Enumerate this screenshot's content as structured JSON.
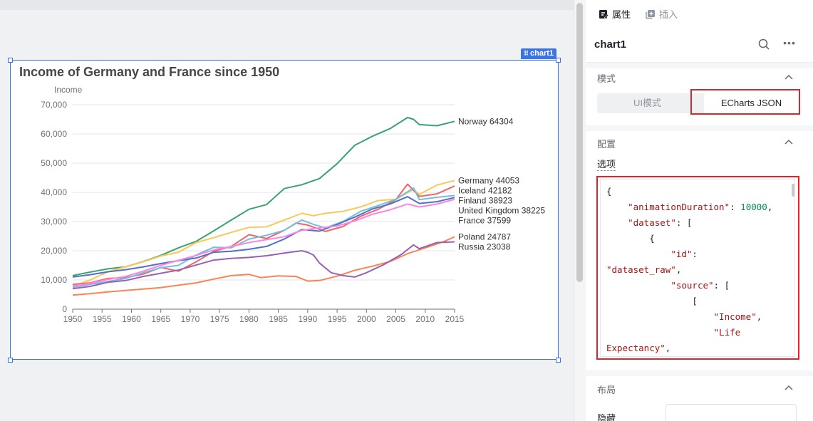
{
  "canvas": {
    "component_tag": "chart1"
  },
  "chart_data": {
    "type": "line",
    "title": "Income of Germany and France since 1950",
    "ylabel": "Income",
    "xlabel": "",
    "xlim": [
      1950,
      2015
    ],
    "ylim": [
      0,
      70000
    ],
    "x_ticks": [
      "1950",
      "1955",
      "1960",
      "1965",
      "1970",
      "1975",
      "1980",
      "1985",
      "1990",
      "1995",
      "2000",
      "2005",
      "2010",
      "2015"
    ],
    "y_ticks": [
      "0",
      "10,000",
      "20,000",
      "30,000",
      "40,000",
      "50,000",
      "60,000",
      "70,000"
    ],
    "grid": "horizontal",
    "series": [
      {
        "name": "Norway",
        "end_label": "Norway 64304",
        "color": "#3ba272",
        "points": [
          [
            1950,
            11500
          ],
          [
            1953,
            12700
          ],
          [
            1956,
            13800
          ],
          [
            1959,
            14500
          ],
          [
            1962,
            16300
          ],
          [
            1965,
            18400
          ],
          [
            1968,
            21000
          ],
          [
            1971,
            23200
          ],
          [
            1974,
            26800
          ],
          [
            1977,
            30500
          ],
          [
            1980,
            34200
          ],
          [
            1983,
            35800
          ],
          [
            1986,
            41300
          ],
          [
            1989,
            42600
          ],
          [
            1992,
            44700
          ],
          [
            1995,
            49800
          ],
          [
            1998,
            56100
          ],
          [
            2001,
            59200
          ],
          [
            2004,
            61800
          ],
          [
            2007,
            65600
          ],
          [
            2008,
            65000
          ],
          [
            2009,
            63200
          ],
          [
            2012,
            62800
          ],
          [
            2015,
            64304
          ]
        ]
      },
      {
        "name": "Germany",
        "end_label": "Germany 44053",
        "color": "#fac858",
        "points": [
          [
            1950,
            7800
          ],
          [
            1953,
            10000
          ],
          [
            1956,
            12800
          ],
          [
            1959,
            14500
          ],
          [
            1962,
            16200
          ],
          [
            1965,
            18200
          ],
          [
            1968,
            19500
          ],
          [
            1971,
            22800
          ],
          [
            1974,
            24500
          ],
          [
            1977,
            26300
          ],
          [
            1980,
            28000
          ],
          [
            1983,
            28200
          ],
          [
            1986,
            30500
          ],
          [
            1989,
            32800
          ],
          [
            1991,
            32000
          ],
          [
            1993,
            32800
          ],
          [
            1996,
            33500
          ],
          [
            1999,
            35000
          ],
          [
            2002,
            37200
          ],
          [
            2005,
            37600
          ],
          [
            2008,
            41000
          ],
          [
            2009,
            39300
          ],
          [
            2012,
            42500
          ],
          [
            2015,
            44053
          ]
        ]
      },
      {
        "name": "Iceland",
        "end_label": "Iceland 42182",
        "color": "#ee6666",
        "points": [
          [
            1950,
            8500
          ],
          [
            1953,
            9000
          ],
          [
            1956,
            10500
          ],
          [
            1959,
            10800
          ],
          [
            1962,
            12000
          ],
          [
            1965,
            14300
          ],
          [
            1968,
            13000
          ],
          [
            1971,
            16200
          ],
          [
            1974,
            19800
          ],
          [
            1977,
            21500
          ],
          [
            1980,
            25500
          ],
          [
            1983,
            24200
          ],
          [
            1986,
            27000
          ],
          [
            1988,
            29500
          ],
          [
            1990,
            28800
          ],
          [
            1993,
            26600
          ],
          [
            1996,
            28300
          ],
          [
            1999,
            31800
          ],
          [
            2002,
            34200
          ],
          [
            2005,
            37500
          ],
          [
            2007,
            42800
          ],
          [
            2009,
            38600
          ],
          [
            2012,
            39500
          ],
          [
            2015,
            42182
          ]
        ]
      },
      {
        "name": "Finland",
        "end_label": "Finland 38923",
        "color": "#73c0de",
        "points": [
          [
            1950,
            7500
          ],
          [
            1953,
            8500
          ],
          [
            1956,
            9500
          ],
          [
            1959,
            10500
          ],
          [
            1962,
            12500
          ],
          [
            1965,
            14200
          ],
          [
            1968,
            15000
          ],
          [
            1971,
            18500
          ],
          [
            1974,
            21200
          ],
          [
            1977,
            21000
          ],
          [
            1980,
            24000
          ],
          [
            1983,
            25300
          ],
          [
            1986,
            27000
          ],
          [
            1989,
            30500
          ],
          [
            1991,
            29000
          ],
          [
            1993,
            27800
          ],
          [
            1996,
            30000
          ],
          [
            1999,
            33500
          ],
          [
            2002,
            35500
          ],
          [
            2005,
            37600
          ],
          [
            2008,
            41500
          ],
          [
            2009,
            37500
          ],
          [
            2012,
            38300
          ],
          [
            2015,
            38923
          ]
        ]
      },
      {
        "name": "United Kingdom",
        "end_label": "United Kingdom 38225",
        "color": "#5470c6",
        "points": [
          [
            1950,
            11000
          ],
          [
            1953,
            11800
          ],
          [
            1956,
            12800
          ],
          [
            1959,
            13500
          ],
          [
            1962,
            14500
          ],
          [
            1965,
            15600
          ],
          [
            1968,
            16600
          ],
          [
            1971,
            17500
          ],
          [
            1974,
            19500
          ],
          [
            1977,
            19800
          ],
          [
            1980,
            20500
          ],
          [
            1983,
            21500
          ],
          [
            1986,
            24000
          ],
          [
            1989,
            27300
          ],
          [
            1992,
            26700
          ],
          [
            1995,
            29000
          ],
          [
            1998,
            31500
          ],
          [
            2001,
            34300
          ],
          [
            2004,
            36000
          ],
          [
            2007,
            38500
          ],
          [
            2009,
            36200
          ],
          [
            2012,
            36800
          ],
          [
            2015,
            38225
          ]
        ]
      },
      {
        "name": "France",
        "end_label": "France 37599",
        "color": "#fc84e3",
        "points": [
          [
            1950,
            8000
          ],
          [
            1953,
            8800
          ],
          [
            1956,
            10200
          ],
          [
            1959,
            11200
          ],
          [
            1962,
            13000
          ],
          [
            1965,
            15000
          ],
          [
            1968,
            16700
          ],
          [
            1971,
            18400
          ],
          [
            1974,
            20300
          ],
          [
            1977,
            21500
          ],
          [
            1980,
            22800
          ],
          [
            1983,
            23800
          ],
          [
            1986,
            24800
          ],
          [
            1989,
            27000
          ],
          [
            1992,
            27800
          ],
          [
            1995,
            28500
          ],
          [
            1998,
            30200
          ],
          [
            2001,
            32500
          ],
          [
            2004,
            34000
          ],
          [
            2007,
            36000
          ],
          [
            2009,
            35000
          ],
          [
            2012,
            36000
          ],
          [
            2015,
            37599
          ]
        ]
      },
      {
        "name": "Poland",
        "end_label": "Poland 24787",
        "color": "#fc8452",
        "points": [
          [
            1950,
            4800
          ],
          [
            1953,
            5300
          ],
          [
            1956,
            5900
          ],
          [
            1959,
            6400
          ],
          [
            1962,
            6900
          ],
          [
            1965,
            7400
          ],
          [
            1968,
            8200
          ],
          [
            1971,
            9000
          ],
          [
            1974,
            10300
          ],
          [
            1977,
            11500
          ],
          [
            1980,
            11900
          ],
          [
            1982,
            10800
          ],
          [
            1985,
            11400
          ],
          [
            1988,
            11200
          ],
          [
            1990,
            9600
          ],
          [
            1992,
            9800
          ],
          [
            1995,
            11300
          ],
          [
            1998,
            13300
          ],
          [
            2001,
            14700
          ],
          [
            2004,
            16300
          ],
          [
            2007,
            19000
          ],
          [
            2010,
            21000
          ],
          [
            2013,
            23000
          ],
          [
            2015,
            24787
          ]
        ]
      },
      {
        "name": "Russia",
        "end_label": "Russia 23038",
        "color": "#9a60b4",
        "points": [
          [
            1950,
            7000
          ],
          [
            1953,
            7800
          ],
          [
            1956,
            9200
          ],
          [
            1959,
            9800
          ],
          [
            1962,
            11200
          ],
          [
            1965,
            12300
          ],
          [
            1968,
            13400
          ],
          [
            1971,
            15100
          ],
          [
            1974,
            16800
          ],
          [
            1977,
            17400
          ],
          [
            1980,
            17700
          ],
          [
            1983,
            18300
          ],
          [
            1986,
            19200
          ],
          [
            1989,
            20000
          ],
          [
            1990,
            19500
          ],
          [
            1991,
            18500
          ],
          [
            1992,
            15800
          ],
          [
            1994,
            12500
          ],
          [
            1996,
            11500
          ],
          [
            1998,
            11000
          ],
          [
            2000,
            12500
          ],
          [
            2003,
            15300
          ],
          [
            2006,
            18800
          ],
          [
            2008,
            22000
          ],
          [
            2009,
            20700
          ],
          [
            2012,
            22800
          ],
          [
            2015,
            23038
          ]
        ]
      }
    ]
  },
  "panel": {
    "tabs": [
      {
        "label": "属性",
        "icon": "edit-icon"
      },
      {
        "label": "插入",
        "icon": "insert-icon"
      }
    ],
    "component_name": "chart1",
    "mode_section": {
      "title": "模式",
      "options": [
        "UI模式",
        "ECharts JSON"
      ],
      "selected": "ECharts JSON"
    },
    "config_section": {
      "title": "配置",
      "option_label": "选项",
      "code_lines": [
        [
          [
            "p",
            "{"
          ]
        ],
        [
          [
            "p",
            "    "
          ],
          [
            "k",
            "\"animationDuration\""
          ],
          [
            "p",
            ": "
          ],
          [
            "n",
            "10000"
          ],
          [
            "p",
            ","
          ]
        ],
        [
          [
            "p",
            "    "
          ],
          [
            "k",
            "\"dataset\""
          ],
          [
            "p",
            ": ["
          ]
        ],
        [
          [
            "p",
            "        {"
          ]
        ],
        [
          [
            "p",
            "            "
          ],
          [
            "k",
            "\"id\""
          ],
          [
            "p",
            ":"
          ]
        ],
        [
          [
            "k",
            "\"dataset_raw\""
          ],
          [
            "p",
            ","
          ]
        ],
        [
          [
            "p",
            "            "
          ],
          [
            "k",
            "\"source\""
          ],
          [
            "p",
            ": ["
          ]
        ],
        [
          [
            "p",
            "                ["
          ]
        ],
        [
          [
            "p",
            "                    "
          ],
          [
            "k",
            "\"Income\""
          ],
          [
            "p",
            ","
          ]
        ],
        [
          [
            "p",
            "                    "
          ],
          [
            "k",
            "\"Life"
          ]
        ],
        [
          [
            "k",
            "Expectancy\""
          ],
          [
            "p",
            ","
          ]
        ]
      ]
    },
    "layout_section": {
      "title": "布局",
      "hide_label": "隐藏"
    }
  }
}
